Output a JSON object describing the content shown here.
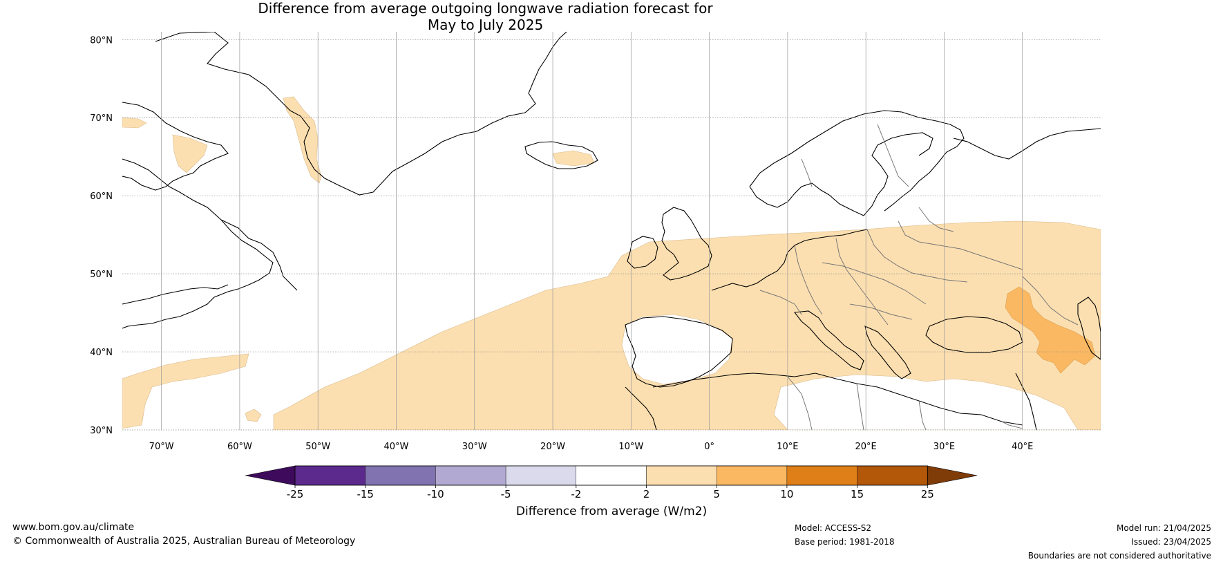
{
  "title": {
    "line1": "Difference from average outgoing longwave radiation forecast for",
    "line2": "May to July 2025"
  },
  "map": {
    "lon_range": [
      -75,
      50
    ],
    "lat_range": [
      30,
      81
    ],
    "lat_ticks": [
      {
        "value": 80,
        "label": "80°N"
      },
      {
        "value": 70,
        "label": "70°N"
      },
      {
        "value": 60,
        "label": "60°N"
      },
      {
        "value": 50,
        "label": "50°N"
      },
      {
        "value": 40,
        "label": "40°N"
      },
      {
        "value": 30,
        "label": "30°N"
      }
    ],
    "lon_ticks": [
      {
        "value": -70,
        "label": "70°W"
      },
      {
        "value": -60,
        "label": "60°W"
      },
      {
        "value": -50,
        "label": "50°W"
      },
      {
        "value": -40,
        "label": "40°W"
      },
      {
        "value": -30,
        "label": "30°W"
      },
      {
        "value": -20,
        "label": "20°W"
      },
      {
        "value": -10,
        "label": "10°W"
      },
      {
        "value": 0,
        "label": "0°"
      },
      {
        "value": 10,
        "label": "10°E"
      },
      {
        "value": 20,
        "label": "20°E"
      },
      {
        "value": 30,
        "label": "30°E"
      },
      {
        "value": 40,
        "label": "40°E"
      }
    ],
    "grid": true,
    "anomaly_regions": [
      {
        "class": "2 to 5",
        "color": "#fcdfb0",
        "description": "Europe, North Atlantic and North Africa band"
      },
      {
        "class": "5 to 10",
        "color": "#fbb862",
        "description": "Caucasus region"
      }
    ]
  },
  "colorbar": {
    "label": "Difference from average (W/m2)",
    "colors": [
      "#3e0b5c",
      "#5b2a8c",
      "#8073b0",
      "#b2a9d2",
      "#dadaec",
      "#ffffff",
      "#fcdfb0",
      "#fbb862",
      "#df7f18",
      "#b35709",
      "#7f3b08"
    ],
    "tick_labels": [
      "-25",
      "-15",
      "-10",
      "-5",
      "-2",
      "2",
      "5",
      "10",
      "15",
      "25"
    ]
  },
  "footer": {
    "website": "www.bom.gov.au/climate",
    "copyright": "© Commonwealth of Australia 2025, Australian Bureau of Meteorology",
    "model": "Model: ACCESS-S2",
    "base_period": "Base period: 1981-2018",
    "model_run": "Model run: 21/04/2025",
    "issued": "Issued: 23/04/2025",
    "disclaimer": "Boundaries are not considered authoritative"
  }
}
